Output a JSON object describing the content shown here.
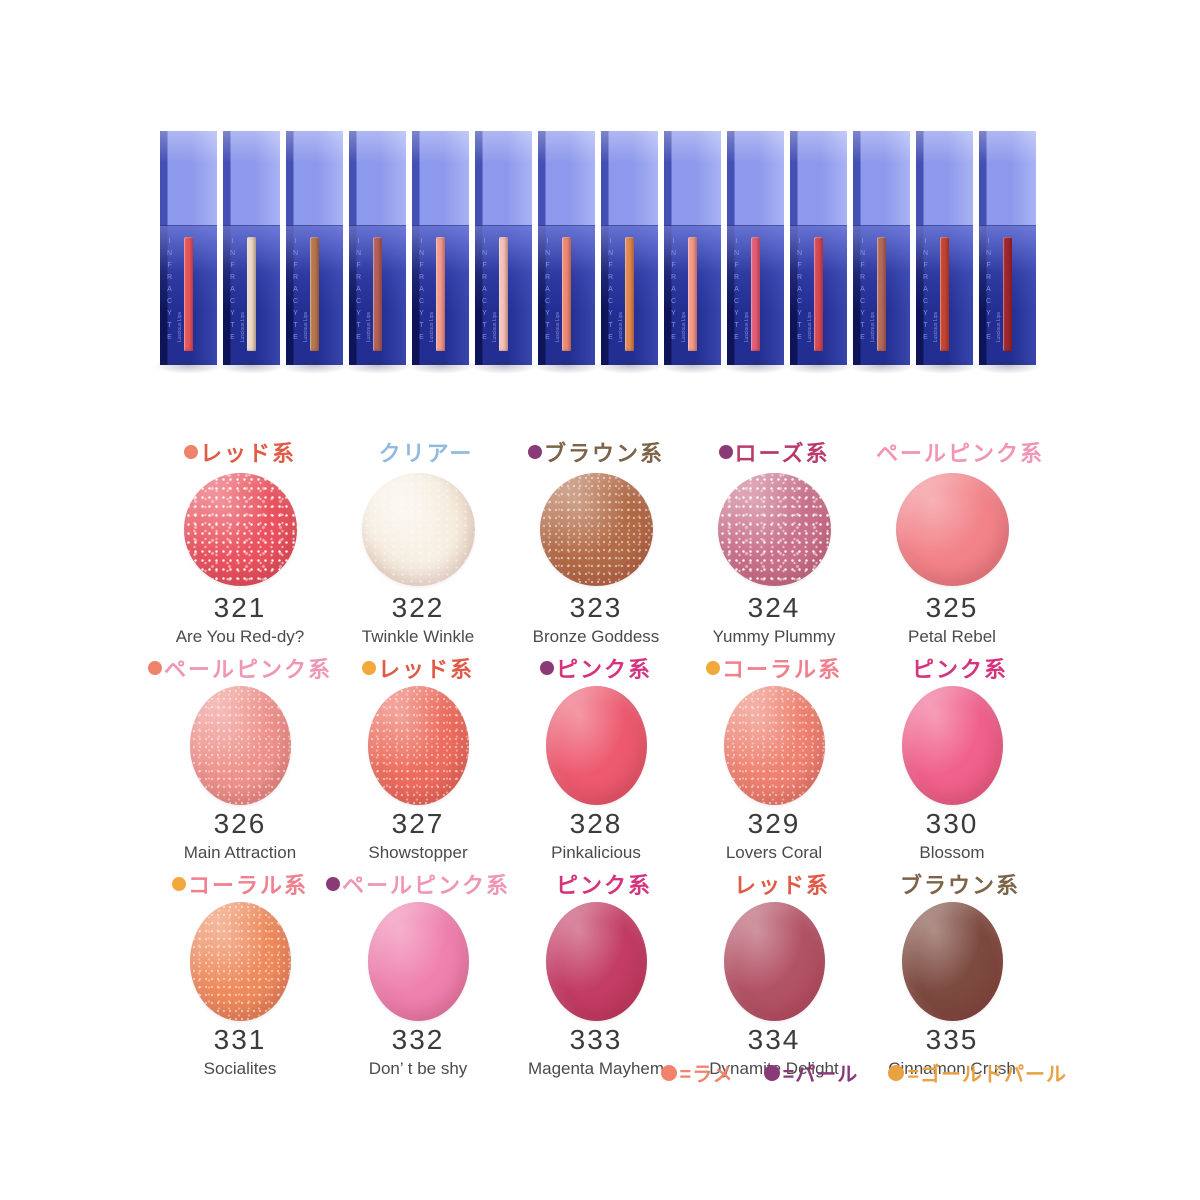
{
  "products": {
    "brand": "INFRACYTE",
    "line": "Luscious Lips",
    "tubes": [
      {
        "color": "#E8575C"
      },
      {
        "color": "#EADAC6"
      },
      {
        "color": "#B9794F"
      },
      {
        "color": "#B2615A"
      },
      {
        "color": "#F49D8E"
      },
      {
        "color": "#F6C3B8"
      },
      {
        "color": "#EF8A74"
      },
      {
        "color": "#E18B51"
      },
      {
        "color": "#F59B8C"
      },
      {
        "color": "#E55C74"
      },
      {
        "color": "#D84A54"
      },
      {
        "color": "#B56A5B"
      },
      {
        "color": "#C64531"
      },
      {
        "color": "#A0262E"
      }
    ]
  },
  "shades": [
    {
      "number": "321",
      "name": "Are You Red-dy?",
      "category": "レッド系",
      "category_color": "#E05A46",
      "dot_color": "#F0836B",
      "swatch_color": "#E9525E",
      "texture": "glitter",
      "shape": "circle"
    },
    {
      "number": "322",
      "name": "Twinkle Winkle",
      "category": "クリアー",
      "category_color": "#92BADF",
      "dot_color": null,
      "swatch_color": "#F4EAD9",
      "texture": "pearl",
      "shape": "circle"
    },
    {
      "number": "323",
      "name": "Bronze Goddess",
      "category": "ブラウン系",
      "category_color": "#7D6347",
      "dot_color": "#8B3A78",
      "swatch_color": "#B26B47",
      "texture": "shimmer",
      "shape": "circle"
    },
    {
      "number": "324",
      "name": "Yummy Plummy",
      "category": "ローズ系",
      "category_color": "#BA3A6E",
      "dot_color": "#8B3A78",
      "swatch_color": "#C8718B",
      "texture": "glitter",
      "shape": "circle"
    },
    {
      "number": "325",
      "name": "Petal Rebel",
      "category": "ペールピンク系",
      "category_color": "#F095B5",
      "dot_color": null,
      "swatch_color": "#F28389",
      "texture": "flat",
      "shape": "circle"
    },
    {
      "number": "326",
      "name": "Main Attraction",
      "category": "ペールピンク系",
      "category_color": "#F095B5",
      "dot_color": "#F0836B",
      "swatch_color": "#EF928C",
      "texture": "shimmer",
      "shape": "oval"
    },
    {
      "number": "327",
      "name": "Showstopper",
      "category": "レッド系",
      "category_color": "#E05A46",
      "dot_color": "#F2A93B",
      "swatch_color": "#ED6C5D",
      "texture": "shimmer",
      "shape": "oval"
    },
    {
      "number": "328",
      "name": "Pinkalicious",
      "category": "ピンク系",
      "category_color": "#D6337F",
      "dot_color": "#8B3A78",
      "swatch_color": "#ED5A6F",
      "texture": "flat",
      "shape": "oval"
    },
    {
      "number": "329",
      "name": "Lovers Coral",
      "category": "コーラル系",
      "category_color": "#F0808E",
      "dot_color": "#F2A93B",
      "swatch_color": "#EF8170",
      "texture": "shimmer",
      "shape": "oval"
    },
    {
      "number": "330",
      "name": "Blossom",
      "category": "ピンク系",
      "category_color": "#D6337F",
      "dot_color": null,
      "swatch_color": "#F0618C",
      "texture": "flat",
      "shape": "oval"
    },
    {
      "number": "331",
      "name": "Socialites",
      "category": "コーラル系",
      "category_color": "#F0808E",
      "dot_color": "#F2A93B",
      "swatch_color": "#EF8A5C",
      "texture": "shimmer",
      "shape": "oval"
    },
    {
      "number": "332",
      "name": "Don’ t be shy",
      "category": "ペールピンク系",
      "category_color": "#F095B5",
      "dot_color": "#8B3A78",
      "swatch_color": "#EF81AF",
      "texture": "flat",
      "shape": "oval"
    },
    {
      "number": "333",
      "name": "Magenta Mayhem",
      "category": "ピンク系",
      "category_color": "#D6337F",
      "dot_color": null,
      "swatch_color": "#C23C64",
      "texture": "flat",
      "shape": "oval"
    },
    {
      "number": "334",
      "name": "Dynamite Delight",
      "category": "レッド系",
      "category_color": "#E05A46",
      "dot_color": null,
      "swatch_color": "#B25265",
      "texture": "flat",
      "shape": "oval"
    },
    {
      "number": "335",
      "name": "Cinnamon Crush",
      "category": "ブラウン系",
      "category_color": "#7D6347",
      "dot_color": null,
      "swatch_color": "#7C4A3F",
      "texture": "flat",
      "shape": "oval"
    }
  ],
  "finish_legend": {
    "items": [
      {
        "label": "=ラメ",
        "color": "#F0836B"
      },
      {
        "label": "=パール",
        "color": "#8B3A78"
      },
      {
        "label": "=ゴールドパール",
        "color": "#E8A242"
      }
    ]
  }
}
